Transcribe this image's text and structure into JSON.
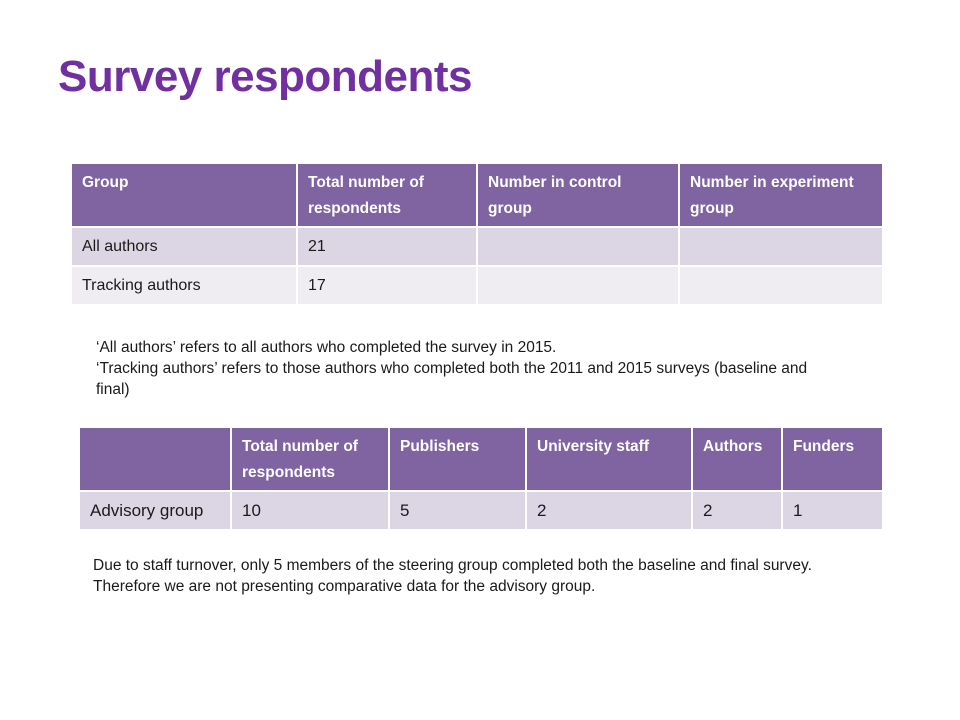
{
  "title": "Survey respondents",
  "table1": {
    "headers": [
      "Group",
      "Total number of respondents",
      "Number in control group",
      "Number in experiment group"
    ],
    "rows": [
      [
        "All authors",
        "21",
        "",
        ""
      ],
      [
        "Tracking authors",
        "17",
        "",
        ""
      ]
    ]
  },
  "note1": {
    "line1": "‘All authors’ refers to all authors who completed the survey in 2015.",
    "line2": "‘Tracking authors’ refers to those authors who completed both the 2011 and 2015 surveys (baseline and final)"
  },
  "table2": {
    "headers": [
      "",
      "Total number of respondents",
      "Publishers",
      "University staff",
      "Authors",
      "Funders"
    ],
    "rows": [
      [
        "Advisory group",
        "10",
        "5",
        "2",
        "2",
        "1"
      ]
    ]
  },
  "note2": "Due to staff turnover, only 5 members of the steering group completed both the baseline and final survey. Therefore we are not presenting comparative data for the advisory group.",
  "colors": {
    "title": "#7030a0",
    "header_bg": "#8064a2",
    "row_dark": "#dcd6e4",
    "row_light": "#efedf2"
  }
}
